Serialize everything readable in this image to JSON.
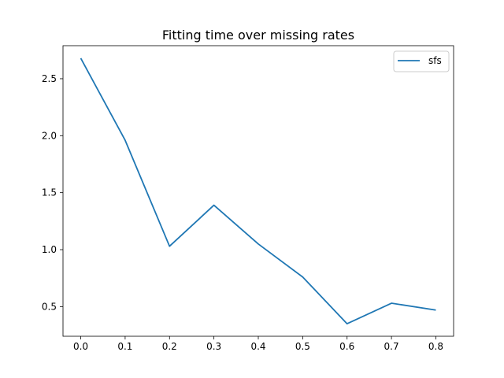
{
  "chart_data": {
    "type": "line",
    "title": "Fitting time over missing rates",
    "xlabel": "",
    "ylabel": "",
    "x": [
      0.0,
      0.1,
      0.2,
      0.3,
      0.4,
      0.5,
      0.6,
      0.7,
      0.8
    ],
    "series": [
      {
        "name": "sfs",
        "values": [
          2.68,
          1.96,
          1.03,
          1.39,
          1.05,
          0.76,
          0.35,
          0.53,
          0.47
        ],
        "color": "#1f77b4"
      }
    ],
    "xlim": [
      -0.04,
      0.84
    ],
    "ylim": [
      0.24,
      2.79
    ],
    "xticks": [
      "0.0",
      "0.1",
      "0.2",
      "0.3",
      "0.4",
      "0.5",
      "0.6",
      "0.7",
      "0.8"
    ],
    "yticks": [
      "0.5",
      "1.0",
      "1.5",
      "2.0",
      "2.5"
    ],
    "grid": false,
    "legend_position": "top-right"
  }
}
